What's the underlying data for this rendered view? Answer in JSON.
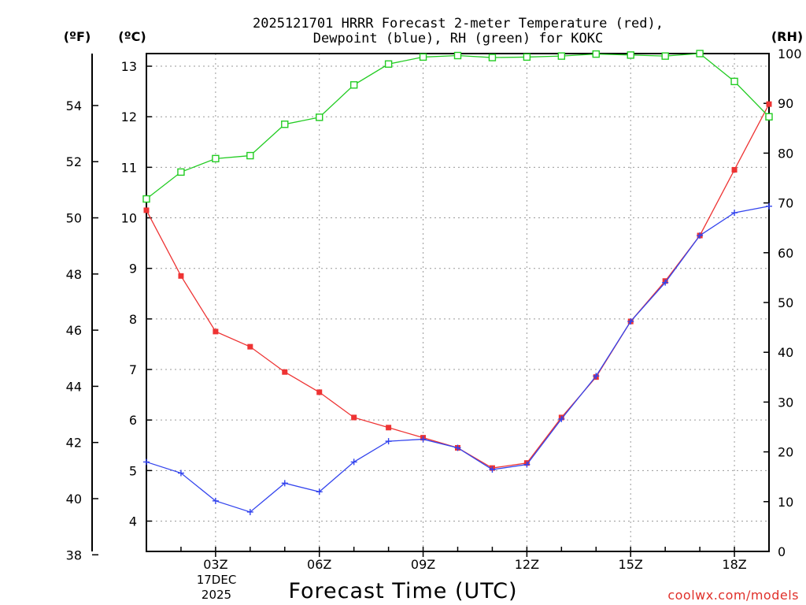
{
  "chart_data": {
    "type": "line",
    "title_line1": "2025121701 HRRR Forecast 2-meter Temperature (red),",
    "title_line2": "Dewpoint (blue), RH (green) for KOKC",
    "unit_f": "(ºF)",
    "unit_c": "(ºC)",
    "unit_rh": "(RH)",
    "xlabel": "Forecast Time (UTC)",
    "watermark": "coolwx.com/models",
    "date_label_line1": "17DEC",
    "date_label_line2": "2025",
    "x_hours": [
      1,
      2,
      3,
      4,
      5,
      6,
      7,
      8,
      9,
      10,
      11,
      12,
      13,
      14,
      15,
      16,
      17,
      18,
      19
    ],
    "xlim": [
      1,
      19
    ],
    "x_tick_hours": [
      3,
      6,
      9,
      12,
      15,
      18
    ],
    "x_tick_labels": [
      "03Z",
      "06Z",
      "09Z",
      "12Z",
      "15Z",
      "18Z"
    ],
    "ylim_c": [
      3.4,
      13.25
    ],
    "y_ticks_c": [
      4,
      5,
      6,
      7,
      8,
      9,
      10,
      11,
      12,
      13
    ],
    "y_ticks_f": [
      38,
      40,
      42,
      44,
      46,
      48,
      50,
      52,
      54
    ],
    "ylim_rh": [
      0,
      100
    ],
    "y_ticks_rh": [
      0,
      10,
      20,
      30,
      40,
      50,
      60,
      70,
      80,
      90,
      100
    ],
    "series": [
      {
        "name": "2-meter Temperature",
        "unit": "C",
        "color": "#ee3333",
        "marker": "filled-square",
        "values": [
          10.15,
          8.85,
          7.75,
          7.45,
          6.95,
          6.55,
          6.05,
          5.85,
          5.65,
          5.45,
          5.05,
          5.15,
          6.05,
          6.85,
          7.95,
          8.75,
          9.65,
          10.95,
          12.25
        ]
      },
      {
        "name": "Dewpoint",
        "unit": "C",
        "color": "#3344ee",
        "marker": "plus",
        "values": [
          5.17,
          4.95,
          4.4,
          4.18,
          4.75,
          4.58,
          5.17,
          5.58,
          5.62,
          5.45,
          5.02,
          5.12,
          6.02,
          6.87,
          7.95,
          8.72,
          9.65,
          10.1,
          10.23
        ]
      },
      {
        "name": "Relative Humidity",
        "unit": "%",
        "color": "#22cc22",
        "marker": "open-square",
        "values": [
          70.8,
          76.2,
          78.9,
          79.5,
          85.8,
          87.2,
          93.7,
          97.9,
          99.3,
          99.6,
          99.2,
          99.3,
          99.5,
          99.9,
          99.7,
          99.5,
          100,
          94.4,
          87.3
        ]
      }
    ]
  }
}
